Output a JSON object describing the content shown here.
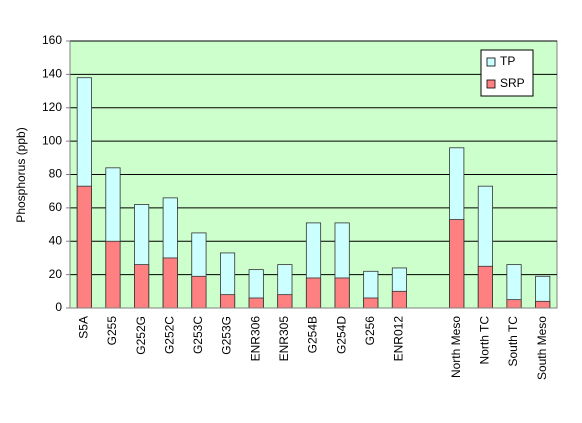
{
  "chart_data": {
    "type": "bar",
    "overlay": true,
    "y_label": "Phosphorus (ppb)",
    "categories": [
      "S5A",
      "G255",
      "G252G",
      "G252C",
      "G253C",
      "G253G",
      "ENR306",
      "ENR305",
      "G254B",
      "G254D",
      "G256",
      "ENR012",
      null,
      "North Meso",
      "North TC",
      "South TC",
      "South Meso"
    ],
    "series": [
      {
        "name": "TP",
        "color": "#ccffff",
        "values": [
          138,
          84,
          62,
          66,
          45,
          33,
          23,
          26,
          51,
          51,
          22,
          24,
          null,
          96,
          73,
          26,
          19
        ]
      },
      {
        "name": "SRP",
        "color": "#ff8080",
        "values": [
          73,
          40,
          26,
          30,
          19,
          8,
          6,
          8,
          18,
          18,
          6,
          10,
          null,
          53,
          25,
          5,
          4
        ]
      }
    ],
    "ylim": [
      0,
      160
    ],
    "yticks": [
      0,
      20,
      40,
      60,
      80,
      100,
      120,
      140,
      160
    ],
    "grid": true,
    "legend": "top-right",
    "plot_background": "#ccffcc"
  }
}
